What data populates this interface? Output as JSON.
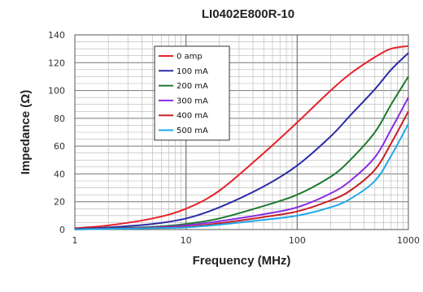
{
  "chart_data": {
    "type": "line",
    "title": "LI0402E800R-10",
    "xlabel": "Frequency (MHz)",
    "ylabel": "Impedance (Ω)",
    "xscale": "log",
    "xlim": [
      1,
      1000
    ],
    "ylim": [
      0,
      140
    ],
    "xticks": [
      "1",
      "10",
      "100",
      "1000"
    ],
    "yticks": [
      "0",
      "20",
      "40",
      "60",
      "80",
      "100",
      "120",
      "140"
    ],
    "grid": true,
    "legend_position": "upper-left",
    "x": [
      1,
      2,
      5,
      10,
      20,
      50,
      100,
      200,
      300,
      500,
      700,
      1000
    ],
    "series": [
      {
        "name": "0 amp",
        "color": "#e8202a",
        "values": [
          1,
          3,
          8,
          15,
          28,
          55,
          77,
          100,
          112,
          124,
          130,
          132
        ]
      },
      {
        "name": "100 mA",
        "color": "#2b2ba8",
        "values": [
          0.5,
          1.5,
          4,
          8,
          16,
          31,
          46,
          67,
          82,
          101,
          115,
          127
        ]
      },
      {
        "name": "200 mA",
        "color": "#1f7a30",
        "values": [
          0.3,
          0.8,
          2,
          4,
          8,
          17,
          25,
          38,
          50,
          70,
          90,
          110
        ]
      },
      {
        "name": "300 mA",
        "color": "#8a2be2",
        "values": [
          0.2,
          0.6,
          1.5,
          3,
          6,
          11,
          16,
          26,
          35,
          52,
          72,
          95
        ]
      },
      {
        "name": "400 mA",
        "color": "#c8202a",
        "values": [
          0.2,
          0.5,
          1.2,
          2,
          4.5,
          9,
          13,
          21,
          28,
          43,
          62,
          85
        ]
      },
      {
        "name": "500 mA",
        "color": "#1ea8e8",
        "values": [
          0.1,
          0.4,
          1,
          1.5,
          3.5,
          7,
          10,
          16,
          22,
          35,
          53,
          76
        ]
      }
    ]
  }
}
